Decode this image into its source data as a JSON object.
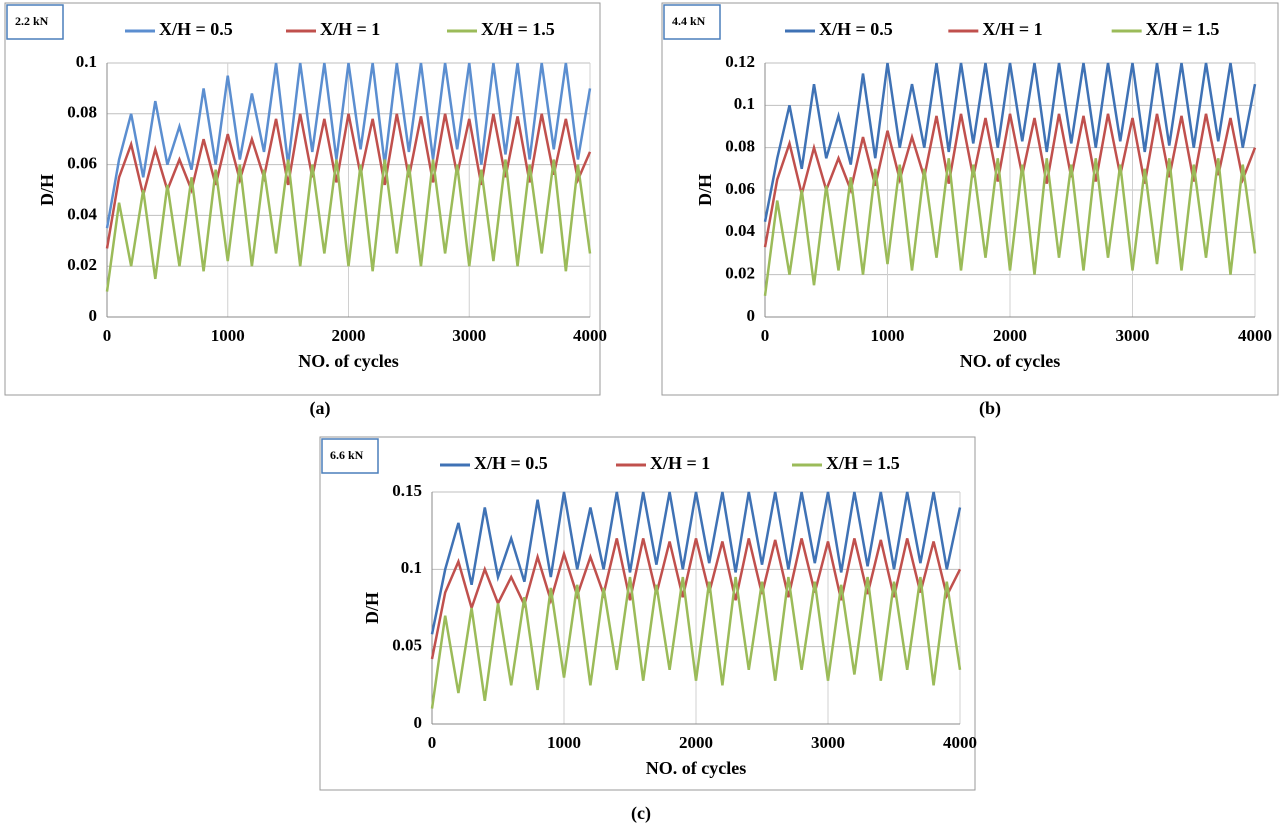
{
  "chart_data": [
    {
      "type": "line",
      "label": "2.2 kN",
      "caption": "(a)",
      "xlabel": "NO. of cycles",
      "ylabel": "D/H",
      "x": [
        0,
        100,
        200,
        300,
        400,
        500,
        600,
        700,
        800,
        900,
        1000,
        1100,
        1200,
        1300,
        1400,
        1500,
        1600,
        1700,
        1800,
        1900,
        2000,
        2100,
        2200,
        2300,
        2400,
        2500,
        2600,
        2700,
        2800,
        2900,
        3000,
        3100,
        3200,
        3300,
        3400,
        3500,
        3600,
        3700,
        3800,
        3900,
        4000
      ],
      "series": [
        {
          "name": "X/H = 0.5",
          "color": "#5b8ed0",
          "values": [
            0.035,
            0.062,
            0.08,
            0.055,
            0.085,
            0.06,
            0.075,
            0.058,
            0.09,
            0.06,
            0.095,
            0.062,
            0.088,
            0.065,
            0.1,
            0.06,
            0.1,
            0.065,
            0.1,
            0.062,
            0.1,
            0.066,
            0.1,
            0.06,
            0.1,
            0.065,
            0.1,
            0.062,
            0.1,
            0.066,
            0.1,
            0.06,
            0.1,
            0.064,
            0.1,
            0.062,
            0.1,
            0.066,
            0.1,
            0.062,
            0.09
          ]
        },
        {
          "name": "X/H = 1",
          "color": "#c0504d",
          "values": [
            0.027,
            0.055,
            0.068,
            0.048,
            0.066,
            0.05,
            0.062,
            0.05,
            0.07,
            0.052,
            0.072,
            0.054,
            0.07,
            0.055,
            0.078,
            0.052,
            0.08,
            0.055,
            0.078,
            0.053,
            0.08,
            0.056,
            0.078,
            0.052,
            0.08,
            0.055,
            0.079,
            0.053,
            0.08,
            0.056,
            0.078,
            0.052,
            0.08,
            0.055,
            0.079,
            0.053,
            0.08,
            0.056,
            0.078,
            0.054,
            0.065
          ]
        },
        {
          "name": "X/H = 1.5",
          "color": "#9bbb59",
          "values": [
            0.01,
            0.045,
            0.02,
            0.05,
            0.015,
            0.052,
            0.02,
            0.055,
            0.018,
            0.058,
            0.022,
            0.06,
            0.02,
            0.058,
            0.025,
            0.062,
            0.02,
            0.06,
            0.025,
            0.062,
            0.02,
            0.06,
            0.018,
            0.062,
            0.025,
            0.06,
            0.02,
            0.062,
            0.025,
            0.06,
            0.02,
            0.058,
            0.022,
            0.062,
            0.02,
            0.06,
            0.025,
            0.062,
            0.018,
            0.06,
            0.025
          ]
        }
      ],
      "xlim": [
        0,
        4000
      ],
      "xticks": [
        0,
        1000,
        2000,
        3000,
        4000
      ],
      "ylim": [
        0,
        0.1
      ],
      "yticks": [
        0,
        0.02,
        0.04,
        0.06,
        0.08,
        0.1
      ],
      "grid": true,
      "legend": "top"
    },
    {
      "type": "line",
      "label": "4.4 kN",
      "caption": "(b)",
      "xlabel": "NO. of cycles",
      "ylabel": "D/H",
      "x": [
        0,
        100,
        200,
        300,
        400,
        500,
        600,
        700,
        800,
        900,
        1000,
        1100,
        1200,
        1300,
        1400,
        1500,
        1600,
        1700,
        1800,
        1900,
        2000,
        2100,
        2200,
        2300,
        2400,
        2500,
        2600,
        2700,
        2800,
        2900,
        3000,
        3100,
        3200,
        3300,
        3400,
        3500,
        3600,
        3700,
        3800,
        3900,
        4000
      ],
      "series": [
        {
          "name": "X/H = 0.5",
          "color": "#3f72b5",
          "values": [
            0.045,
            0.075,
            0.1,
            0.07,
            0.11,
            0.075,
            0.095,
            0.072,
            0.115,
            0.075,
            0.12,
            0.08,
            0.11,
            0.08,
            0.12,
            0.078,
            0.12,
            0.082,
            0.12,
            0.08,
            0.12,
            0.083,
            0.12,
            0.078,
            0.12,
            0.082,
            0.12,
            0.08,
            0.12,
            0.083,
            0.12,
            0.078,
            0.12,
            0.081,
            0.12,
            0.08,
            0.12,
            0.083,
            0.12,
            0.08,
            0.11
          ]
        },
        {
          "name": "X/H = 1",
          "color": "#c0504d",
          "values": [
            0.033,
            0.065,
            0.082,
            0.058,
            0.08,
            0.06,
            0.075,
            0.06,
            0.085,
            0.062,
            0.088,
            0.065,
            0.085,
            0.066,
            0.095,
            0.063,
            0.096,
            0.066,
            0.094,
            0.064,
            0.096,
            0.067,
            0.094,
            0.063,
            0.096,
            0.066,
            0.095,
            0.064,
            0.096,
            0.067,
            0.094,
            0.063,
            0.096,
            0.066,
            0.095,
            0.064,
            0.096,
            0.067,
            0.094,
            0.065,
            0.08
          ]
        },
        {
          "name": "X/H = 1.5",
          "color": "#9bbb59",
          "values": [
            0.01,
            0.055,
            0.02,
            0.06,
            0.015,
            0.062,
            0.022,
            0.066,
            0.02,
            0.07,
            0.025,
            0.072,
            0.022,
            0.07,
            0.028,
            0.075,
            0.022,
            0.072,
            0.028,
            0.075,
            0.022,
            0.072,
            0.02,
            0.075,
            0.028,
            0.072,
            0.022,
            0.075,
            0.028,
            0.072,
            0.022,
            0.07,
            0.025,
            0.075,
            0.022,
            0.072,
            0.028,
            0.075,
            0.02,
            0.072,
            0.03
          ]
        }
      ],
      "xlim": [
        0,
        4000
      ],
      "xticks": [
        0,
        1000,
        2000,
        3000,
        4000
      ],
      "ylim": [
        0,
        0.12
      ],
      "yticks": [
        0,
        0.02,
        0.04,
        0.06,
        0.08,
        0.1,
        0.12
      ],
      "grid": true,
      "legend": "top"
    },
    {
      "type": "line",
      "label": "6.6 kN",
      "caption": "(c)",
      "xlabel": "NO. of cycles",
      "ylabel": "D/H",
      "x": [
        0,
        100,
        200,
        300,
        400,
        500,
        600,
        700,
        800,
        900,
        1000,
        1100,
        1200,
        1300,
        1400,
        1500,
        1600,
        1700,
        1800,
        1900,
        2000,
        2100,
        2200,
        2300,
        2400,
        2500,
        2600,
        2700,
        2800,
        2900,
        3000,
        3100,
        3200,
        3300,
        3400,
        3500,
        3600,
        3700,
        3800,
        3900,
        4000
      ],
      "series": [
        {
          "name": "X/H = 0.5",
          "color": "#3f72b5",
          "values": [
            0.058,
            0.1,
            0.13,
            0.09,
            0.14,
            0.095,
            0.12,
            0.092,
            0.145,
            0.095,
            0.15,
            0.1,
            0.14,
            0.1,
            0.15,
            0.098,
            0.15,
            0.103,
            0.15,
            0.1,
            0.15,
            0.104,
            0.15,
            0.098,
            0.15,
            0.103,
            0.15,
            0.1,
            0.15,
            0.104,
            0.15,
            0.098,
            0.15,
            0.102,
            0.15,
            0.1,
            0.15,
            0.104,
            0.15,
            0.1,
            0.14
          ]
        },
        {
          "name": "X/H = 1",
          "color": "#c0504d",
          "values": [
            0.042,
            0.085,
            0.105,
            0.075,
            0.1,
            0.078,
            0.095,
            0.077,
            0.108,
            0.08,
            0.11,
            0.083,
            0.108,
            0.084,
            0.12,
            0.08,
            0.12,
            0.084,
            0.118,
            0.082,
            0.12,
            0.085,
            0.118,
            0.08,
            0.12,
            0.084,
            0.119,
            0.082,
            0.12,
            0.085,
            0.118,
            0.08,
            0.12,
            0.084,
            0.119,
            0.082,
            0.12,
            0.085,
            0.118,
            0.083,
            0.1
          ]
        },
        {
          "name": "X/H = 1.5",
          "color": "#9bbb59",
          "values": [
            0.01,
            0.07,
            0.02,
            0.075,
            0.015,
            0.078,
            0.025,
            0.082,
            0.022,
            0.088,
            0.03,
            0.09,
            0.025,
            0.088,
            0.035,
            0.095,
            0.028,
            0.09,
            0.035,
            0.095,
            0.028,
            0.092,
            0.025,
            0.095,
            0.035,
            0.092,
            0.028,
            0.095,
            0.035,
            0.092,
            0.028,
            0.09,
            0.032,
            0.095,
            0.028,
            0.092,
            0.035,
            0.095,
            0.025,
            0.092,
            0.035
          ]
        }
      ],
      "xlim": [
        0,
        4000
      ],
      "xticks": [
        0,
        1000,
        2000,
        3000,
        4000
      ],
      "ylim": [
        0,
        0.15
      ],
      "yticks": [
        0,
        0.05,
        0.1,
        0.15
      ],
      "grid": true,
      "legend": "top"
    }
  ]
}
